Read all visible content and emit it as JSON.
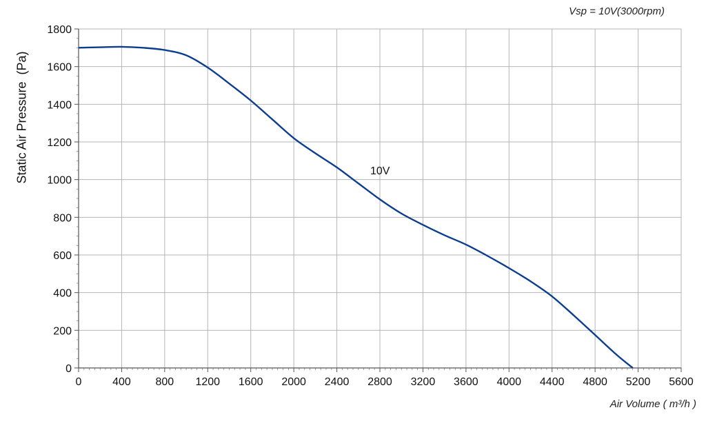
{
  "chart_data": {
    "type": "line",
    "subtitle": "Vsp = 10V(3000rpm)",
    "xlabel": "Air Volume ( m³/h )",
    "ylabel": "Static Air Pressure  (Pa)",
    "xlim": [
      0,
      5600
    ],
    "ylim": [
      0,
      1800
    ],
    "x_ticks": [
      0,
      400,
      800,
      1200,
      1600,
      2000,
      2400,
      2800,
      3200,
      3600,
      4000,
      4400,
      4800,
      5200,
      5600
    ],
    "y_ticks": [
      0,
      200,
      400,
      600,
      800,
      1000,
      1200,
      1400,
      1600,
      1800
    ],
    "grid": {
      "vertical": true,
      "horizontal": true
    },
    "colors": {
      "line": "#0b3d91",
      "grid": "#b5b5b5",
      "axis": "#555555"
    },
    "series": [
      {
        "name": "10V",
        "x": [
          0,
          200,
          400,
          600,
          800,
          1000,
          1200,
          1400,
          1600,
          1800,
          2000,
          2200,
          2400,
          2600,
          2800,
          3000,
          3200,
          3400,
          3600,
          3800,
          4000,
          4200,
          4400,
          4600,
          4800,
          5000,
          5150
        ],
        "y": [
          1700,
          1703,
          1705,
          1700,
          1688,
          1660,
          1595,
          1510,
          1420,
          1320,
          1220,
          1140,
          1065,
          980,
          895,
          820,
          760,
          705,
          655,
          595,
          530,
          460,
          380,
          280,
          175,
          70,
          0
        ]
      }
    ]
  }
}
